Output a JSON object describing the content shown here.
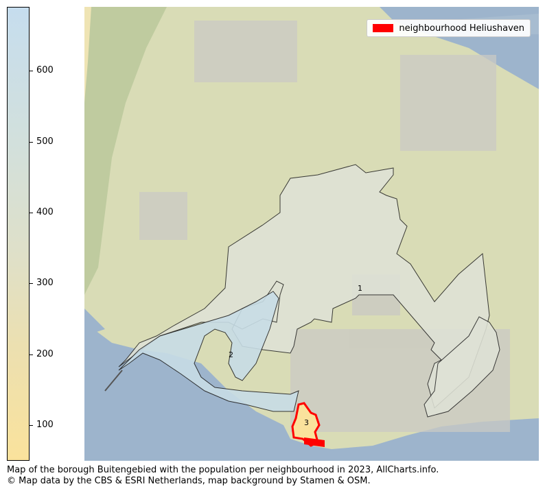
{
  "colorbar": {
    "min": 50,
    "max": 690,
    "ticks": [
      {
        "value": 100,
        "label": "100"
      },
      {
        "value": 200,
        "label": "200"
      },
      {
        "value": 300,
        "label": "300"
      },
      {
        "value": 400,
        "label": "400"
      },
      {
        "value": 500,
        "label": "500"
      },
      {
        "value": 600,
        "label": "600"
      }
    ],
    "colors": {
      "low": "#fae29c",
      "high": "#c6ddee"
    }
  },
  "legend": {
    "label": "neighbourhood Heliushaven",
    "color": "#ff0000"
  },
  "map": {
    "neighbourhood_labels": [
      "1",
      "2",
      "3"
    ],
    "colors": {
      "water": "#9db4cc",
      "land": "#d9dcb6",
      "region": "#dfe2d6",
      "region_2": "#c8dde6",
      "highlight": "#ff0000"
    }
  },
  "caption": {
    "line1": "Map of the borough Buitengebied with the population per neighbourhood in 2023, AllCharts.info.",
    "line2": "© Map data by the CBS & ESRI Netherlands, map background by Stamen & OSM."
  }
}
